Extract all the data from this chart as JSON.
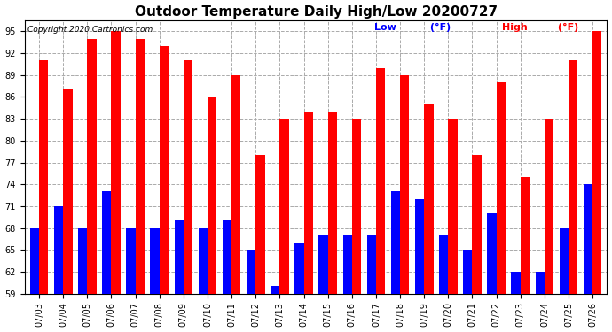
{
  "title": "Outdoor Temperature Daily High/Low 20200727",
  "copyright": "Copyright 2020 Cartronics.com",
  "legend_low": "Low",
  "legend_high": "High",
  "legend_unit": "(°F)",
  "dates": [
    "07/03",
    "07/04",
    "07/05",
    "07/06",
    "07/07",
    "07/08",
    "07/09",
    "07/10",
    "07/11",
    "07/12",
    "07/13",
    "07/14",
    "07/15",
    "07/16",
    "07/17",
    "07/18",
    "07/19",
    "07/20",
    "07/21",
    "07/22",
    "07/23",
    "07/24",
    "07/25",
    "07/26"
  ],
  "highs": [
    91,
    87,
    94,
    95,
    94,
    93,
    91,
    86,
    89,
    78,
    83,
    84,
    84,
    83,
    90,
    89,
    85,
    83,
    78,
    88,
    75,
    83,
    91,
    95
  ],
  "lows": [
    68,
    71,
    68,
    73,
    68,
    68,
    69,
    68,
    69,
    65,
    60,
    66,
    67,
    67,
    67,
    73,
    72,
    67,
    65,
    70,
    62,
    62,
    68,
    74
  ],
  "high_color": "#ff0000",
  "low_color": "#0000ff",
  "background_color": "#ffffff",
  "plot_background": "#ffffff",
  "grid_color": "#aaaaaa",
  "title_fontsize": 11,
  "tick_fontsize": 7,
  "legend_fontsize": 8,
  "ylim_min": 59.0,
  "ylim_max": 96.5,
  "ybaseline": 59.0,
  "yticks": [
    59.0,
    62.0,
    65.0,
    68.0,
    71.0,
    74.0,
    77.0,
    80.0,
    83.0,
    86.0,
    89.0,
    92.0,
    95.0
  ],
  "bar_width": 0.38
}
